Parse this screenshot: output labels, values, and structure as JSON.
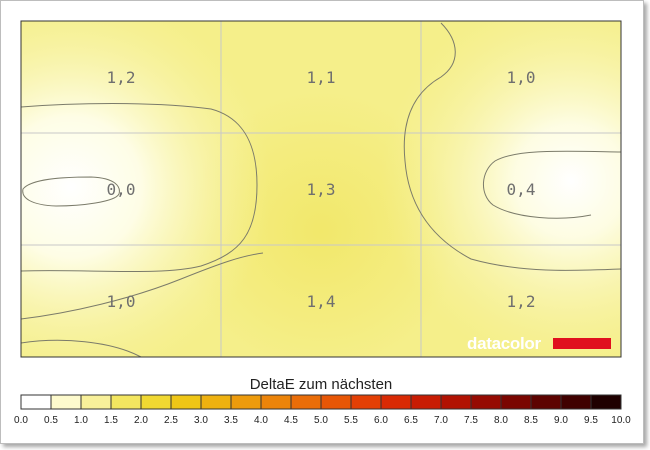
{
  "chart_data": {
    "type": "heatmap",
    "title": "",
    "rows": 3,
    "cols": 3,
    "cells": [
      [
        "1,2",
        "1,1",
        "1,0"
      ],
      [
        "0,0",
        "1,3",
        "0,4"
      ],
      [
        "1,0",
        "1,4",
        "1,2"
      ]
    ],
    "values": [
      [
        1.2,
        1.1,
        1.0
      ],
      [
        0.0,
        1.3,
        0.4
      ],
      [
        1.0,
        1.4,
        1.2
      ]
    ],
    "contour_levels": [
      0.5,
      1.0
    ],
    "grid": true,
    "colorbar": {
      "label": "DeltaE zum nächsten",
      "min": 0.0,
      "max": 10.0,
      "step": 0.5,
      "ticks": [
        "0.0",
        "0.5",
        "1.0",
        "1.5",
        "2.0",
        "2.5",
        "3.0",
        "3.5",
        "4.0",
        "4.5",
        "5.0",
        "5.5",
        "6.0",
        "6.5",
        "7.0",
        "7.5",
        "8.0",
        "8.5",
        "9.0",
        "9.5",
        "10.0"
      ],
      "colors": [
        "#ffffff",
        "#fdfacd",
        "#f8f09a",
        "#f3e660",
        "#f0d832",
        "#efc616",
        "#eeb110",
        "#ed9b0c",
        "#ec840a",
        "#ea6d08",
        "#e75606",
        "#e33f05",
        "#d92a04",
        "#c81c03",
        "#b11202",
        "#960b02",
        "#7a0601",
        "#5d0301",
        "#400100",
        "#1f0000",
        "#000000"
      ]
    },
    "colors": {
      "plot_base": "#f5ef8a",
      "grid": "#c8c8c8",
      "contour": "#7b7b6a",
      "brand_bar": "#e0101e"
    }
  },
  "brand": {
    "name": "datacolor"
  }
}
